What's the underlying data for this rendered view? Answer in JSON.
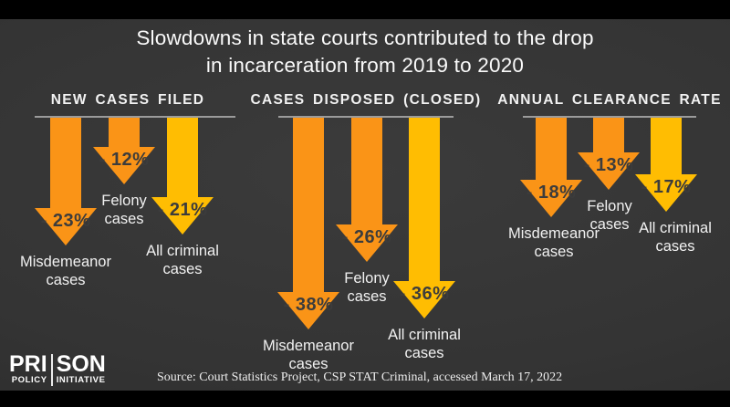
{
  "title": {
    "line1": "Slowdowns in state courts contributed to the drop",
    "line2": "in incarceration from 2019 to 2020"
  },
  "source_note": "Source: Court Statistics Project, CSP STAT Criminal, accessed March 17, 2022",
  "logo": {
    "row1_left": "PRI",
    "row1_right": "SON",
    "row2_left": "POLICY",
    "row2_right": "INITIATIVE"
  },
  "colors": {
    "orange": "#FA9417",
    "yellow": "#FFBD02",
    "percent_text": "#3C3C3C",
    "underline": "#9B9B9B",
    "background_light": "#3B3B3B",
    "background_dark": "#2A2A2A",
    "frame_bar": "#000000",
    "text_light": "#F2F2F2"
  },
  "chart_data": {
    "type": "bar",
    "title": "Slowdowns in state courts contributed to the drop in incarceration from 2019 to 2020",
    "unit": "percent change, 2019 to 2020",
    "orientation": "downward-arrows",
    "categories": [
      "Misdemeanor cases",
      "Felony cases",
      "All criminal cases"
    ],
    "series_colors": [
      "#FA9417",
      "#FA9417",
      "#FFBD02"
    ],
    "panels": [
      {
        "title": "NEW CASES FILED",
        "values": [
          -23,
          -12,
          -21
        ]
      },
      {
        "title": "CASES DISPOSED (CLOSED)",
        "values": [
          -38,
          -26,
          -36
        ]
      },
      {
        "title": "ANNUAL CLEARANCE RATE",
        "values": [
          -18,
          -13,
          -17
        ]
      }
    ]
  }
}
